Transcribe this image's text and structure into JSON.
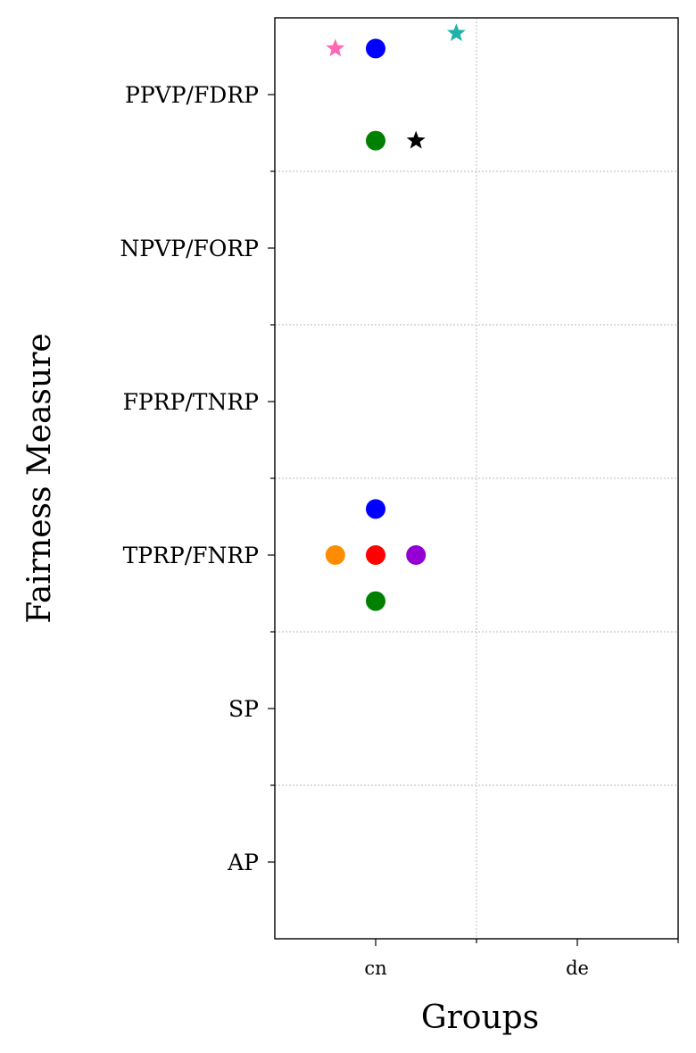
{
  "chart_data": {
    "type": "scatter",
    "xlabel": "Groups",
    "ylabel": "Fairness Measure",
    "xlim": [
      -0.5,
      1.5
    ],
    "ylim": [
      -0.5,
      5.5
    ],
    "xticks": [
      {
        "value": 0,
        "label": "cn"
      },
      {
        "value": 1,
        "label": "de"
      }
    ],
    "xminor": [
      0.5,
      1.5
    ],
    "yticks": [
      {
        "value": 0,
        "label": "AP"
      },
      {
        "value": 1,
        "label": "SP"
      },
      {
        "value": 2,
        "label": "TPRP/FNRP"
      },
      {
        "value": 3,
        "label": "FPRP/TNRP"
      },
      {
        "value": 4,
        "label": "NPVP/FORP"
      },
      {
        "value": 5,
        "label": "PPVP/FDRP"
      }
    ],
    "yminor": [
      0.5,
      1.5,
      2.5,
      3.5,
      4.5
    ],
    "grid": true,
    "series": [
      {
        "color": "#0000ff",
        "marker": "circle",
        "x": [
          0,
          0
        ],
        "y": [
          2.3,
          5.3
        ]
      },
      {
        "color": "#008000",
        "marker": "circle",
        "x": [
          0,
          0
        ],
        "y": [
          1.7,
          4.7
        ]
      },
      {
        "color": "#ff0000",
        "marker": "circle",
        "x": [
          0
        ],
        "y": [
          2
        ]
      },
      {
        "color": "#ff8c00",
        "marker": "circle",
        "x": [
          -0.2
        ],
        "y": [
          2
        ]
      },
      {
        "color": "#9400d3",
        "marker": "circle",
        "x": [
          0.2
        ],
        "y": [
          2
        ]
      },
      {
        "color": "#ff69b4",
        "marker": "star",
        "x": [
          -0.2
        ],
        "y": [
          5.3
        ]
      },
      {
        "color": "#000000",
        "marker": "star",
        "x": [
          0.2
        ],
        "y": [
          4.7
        ]
      },
      {
        "color": "#20b2aa",
        "marker": "star",
        "x": [
          0.4
        ],
        "y": [
          5.4
        ]
      }
    ]
  }
}
